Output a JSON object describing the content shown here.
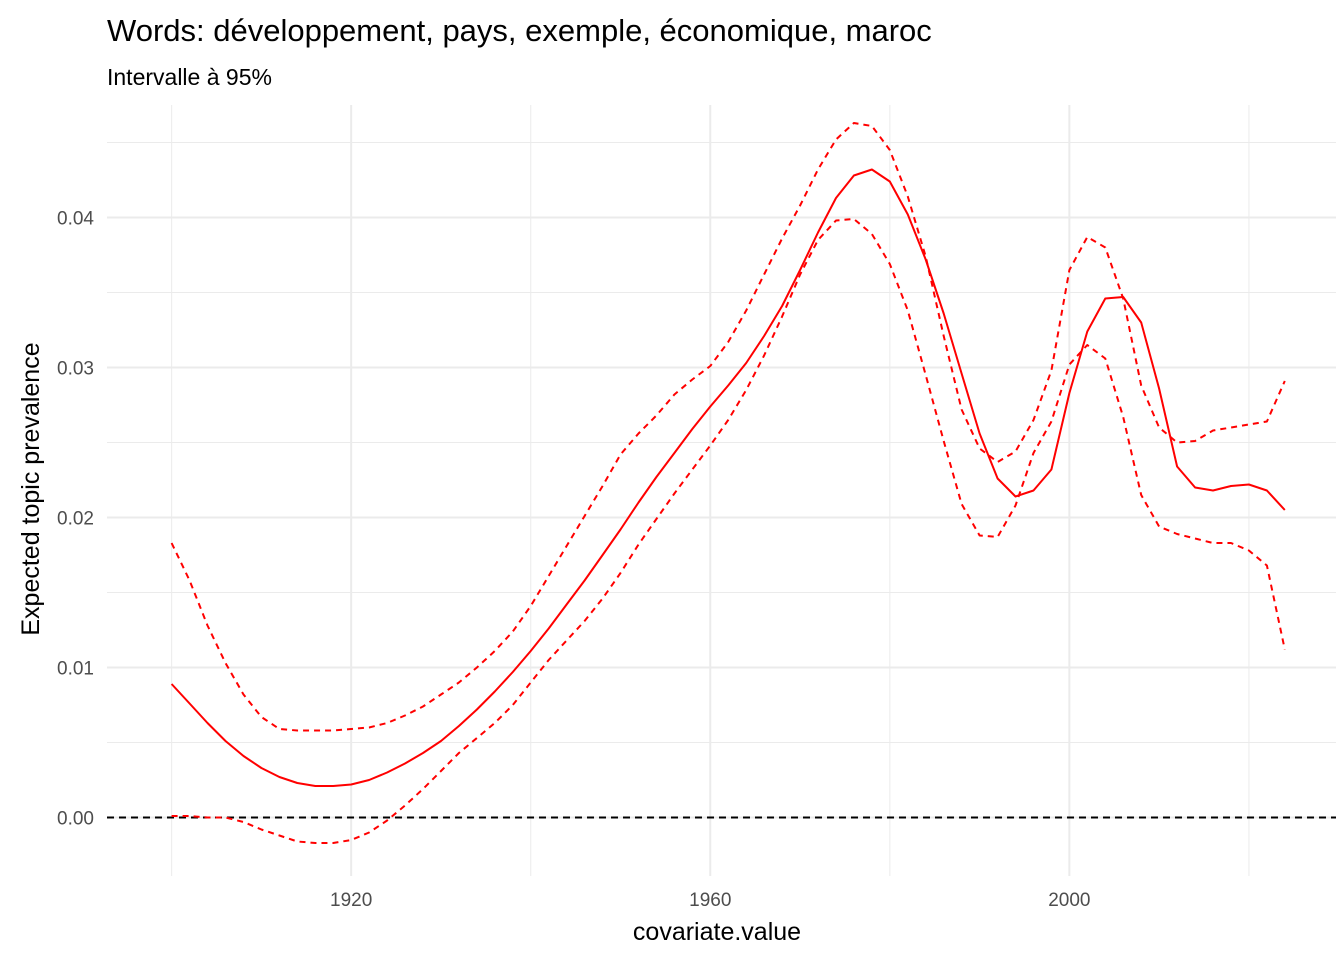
{
  "chart_data": {
    "type": "line",
    "title": "Words: développement, pays, exemple, économique, maroc",
    "subtitle": "Intervalle à 95%",
    "xlabel": "covariate.value",
    "ylabel": "Expected topic prevalence",
    "xlim": [
      1892.8,
      2029.7
    ],
    "ylim": [
      -0.0039,
      0.0475
    ],
    "x_ticks": [
      1920,
      1960,
      2000
    ],
    "x_tick_labels": [
      "1920",
      "1960",
      "2000"
    ],
    "y_ticks": [
      0.0,
      0.01,
      0.02,
      0.03,
      0.04
    ],
    "y_tick_labels": [
      "0.00",
      "0.01",
      "0.02",
      "0.03",
      "0.04"
    ],
    "grid": true,
    "reference_line": {
      "y": 0,
      "style": "dashed",
      "color": "#000000"
    },
    "colors": {
      "series": "#ff0000",
      "grid": "#ebebeb",
      "text": "#000000",
      "tick_text": "#4d4d4d"
    },
    "series": [
      {
        "role": "estimate",
        "style": "solid",
        "x": [
          1900,
          1902,
          1904,
          1906,
          1908,
          1910,
          1912,
          1914,
          1916,
          1918,
          1920,
          1922,
          1924,
          1926,
          1928,
          1930,
          1932,
          1934,
          1936,
          1938,
          1940,
          1942,
          1944,
          1946,
          1948,
          1950,
          1952,
          1954,
          1956,
          1958,
          1960,
          1962,
          1964,
          1966,
          1968,
          1970,
          1972,
          1974,
          1976,
          1978,
          1980,
          1982,
          1984,
          1986,
          1988,
          1990,
          1992,
          1994,
          1996,
          1998,
          2000,
          2002,
          2004,
          2006,
          2008,
          2010,
          2012,
          2014,
          2016,
          2018,
          2020,
          2022,
          2024
        ],
        "y": [
          0.0089,
          0.0076,
          0.0063,
          0.0051,
          0.0041,
          0.0033,
          0.0027,
          0.0023,
          0.0021,
          0.0021,
          0.0022,
          0.0025,
          0.003,
          0.0036,
          0.0043,
          0.0051,
          0.0061,
          0.0072,
          0.0084,
          0.0097,
          0.0111,
          0.0126,
          0.0142,
          0.0158,
          0.0175,
          0.0192,
          0.021,
          0.0227,
          0.0243,
          0.0259,
          0.0274,
          0.0288,
          0.0303,
          0.0321,
          0.0341,
          0.0365,
          0.039,
          0.0413,
          0.0428,
          0.0432,
          0.0424,
          0.0402,
          0.0372,
          0.0336,
          0.0296,
          0.0256,
          0.0226,
          0.0214,
          0.0218,
          0.0232,
          0.0283,
          0.0324,
          0.0346,
          0.0347,
          0.033,
          0.0286,
          0.0234,
          0.022,
          0.0218,
          0.0221,
          0.0222,
          0.0218,
          0.0205
        ]
      },
      {
        "role": "upper 95%",
        "style": "dashed",
        "x": [
          1900,
          1902,
          1904,
          1906,
          1908,
          1910,
          1912,
          1914,
          1916,
          1918,
          1920,
          1922,
          1924,
          1926,
          1928,
          1930,
          1932,
          1934,
          1936,
          1938,
          1940,
          1942,
          1944,
          1946,
          1948,
          1950,
          1952,
          1954,
          1956,
          1958,
          1960,
          1962,
          1964,
          1966,
          1968,
          1970,
          1972,
          1974,
          1976,
          1978,
          1980,
          1982,
          1984,
          1986,
          1988,
          1990,
          1992,
          1994,
          1996,
          1998,
          2000,
          2002,
          2004,
          2006,
          2008,
          2010,
          2012,
          2014,
          2016,
          2018,
          2020,
          2022,
          2024
        ],
        "y": [
          0.0183,
          0.0158,
          0.0128,
          0.0103,
          0.0082,
          0.0067,
          0.0059,
          0.0058,
          0.0058,
          0.0058,
          0.0059,
          0.006,
          0.0063,
          0.0068,
          0.0074,
          0.0082,
          0.009,
          0.01,
          0.0111,
          0.0124,
          0.0141,
          0.0161,
          0.0181,
          0.0201,
          0.0221,
          0.0242,
          0.0256,
          0.0268,
          0.0282,
          0.0292,
          0.0301,
          0.0317,
          0.0338,
          0.0362,
          0.0386,
          0.0408,
          0.0432,
          0.0452,
          0.0463,
          0.0461,
          0.0445,
          0.0414,
          0.0374,
          0.0321,
          0.0272,
          0.0246,
          0.0237,
          0.0244,
          0.0265,
          0.0298,
          0.0365,
          0.0387,
          0.038,
          0.0346,
          0.0288,
          0.026,
          0.025,
          0.0251,
          0.0258,
          0.026,
          0.0262,
          0.0264,
          0.0291
        ]
      },
      {
        "role": "lower 95%",
        "style": "dashed",
        "x": [
          1900,
          1902,
          1904,
          1906,
          1908,
          1910,
          1912,
          1914,
          1916,
          1918,
          1920,
          1922,
          1924,
          1926,
          1928,
          1930,
          1932,
          1934,
          1936,
          1938,
          1940,
          1942,
          1944,
          1946,
          1948,
          1950,
          1952,
          1954,
          1956,
          1958,
          1960,
          1962,
          1964,
          1966,
          1968,
          1970,
          1972,
          1974,
          1976,
          1978,
          1980,
          1982,
          1984,
          1986,
          1988,
          1990,
          1992,
          1994,
          1996,
          1998,
          2000,
          2002,
          2004,
          2006,
          2008,
          2010,
          2012,
          2014,
          2016,
          2018,
          2020,
          2022,
          2024
        ],
        "y": [
          0.0001,
          0.0001,
          0.0,
          0.0,
          -0.0003,
          -0.0008,
          -0.0012,
          -0.0016,
          -0.0017,
          -0.0017,
          -0.0015,
          -0.001,
          -0.0002,
          0.0008,
          0.0019,
          0.0031,
          0.0043,
          0.0053,
          0.0063,
          0.0075,
          0.009,
          0.0105,
          0.0118,
          0.0131,
          0.0146,
          0.0163,
          0.0182,
          0.0199,
          0.0216,
          0.0232,
          0.0248,
          0.0265,
          0.0285,
          0.0308,
          0.0334,
          0.0362,
          0.0385,
          0.0398,
          0.0399,
          0.0389,
          0.0369,
          0.0338,
          0.0295,
          0.0251,
          0.0209,
          0.0188,
          0.0187,
          0.0208,
          0.0243,
          0.0264,
          0.0302,
          0.0315,
          0.0306,
          0.0267,
          0.0215,
          0.0194,
          0.0189,
          0.0186,
          0.0183,
          0.0183,
          0.0178,
          0.0168,
          0.0112
        ]
      }
    ]
  }
}
